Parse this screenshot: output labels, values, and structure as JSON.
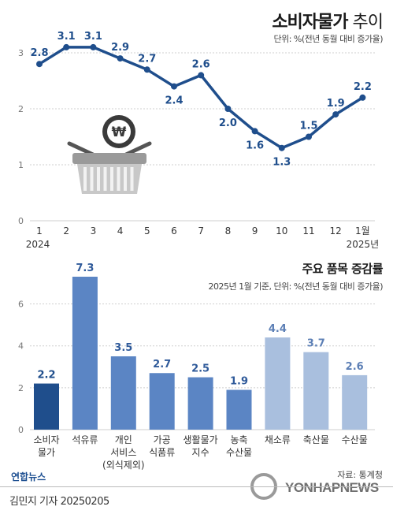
{
  "header": {
    "title_bold": "소비자물가",
    "title_light": " 추이",
    "unit": "단위: %(전년 동월 대비 증가율)"
  },
  "chart_data": [
    {
      "type": "line",
      "title": "소비자물가 추이",
      "ylabel": "",
      "unit": "단위: %(전년 동월 대비 증가율)",
      "ylim": [
        0,
        3
      ],
      "yticks": [
        "0",
        "1",
        "2",
        "3"
      ],
      "x": [
        "1",
        "2",
        "3",
        "4",
        "5",
        "6",
        "7",
        "8",
        "9",
        "10",
        "11",
        "12",
        "1월"
      ],
      "x_year_labels": {
        "start": "2024",
        "end": "2025년"
      },
      "series": [
        {
          "values": [
            2.8,
            3.1,
            3.1,
            2.9,
            2.7,
            2.4,
            2.6,
            2.0,
            1.6,
            1.3,
            1.5,
            1.9,
            2.2
          ],
          "labels": [
            "2.8",
            "3.1",
            "3.1",
            "2.9",
            "2.7",
            "2.4",
            "2.6",
            "2.0",
            "1.6",
            "1.3",
            "1.5",
            "1.9",
            "2.2"
          ]
        }
      ],
      "grid": true,
      "colors": {
        "line": "#1f4e8c",
        "grid": "#cfcfcf"
      }
    },
    {
      "type": "bar",
      "title": "주요 품목 증감률",
      "unit": "2025년 1월 기준, 단위: %(전년 동월 대비 증가율)",
      "ylim": [
        0,
        7.3
      ],
      "yticks": [
        "0",
        "2",
        "4",
        "6"
      ],
      "categories": [
        [
          "소비자",
          "물가"
        ],
        [
          "석유류"
        ],
        [
          "개인",
          "서비스",
          "(외식제외)"
        ],
        [
          "가공",
          "식품류"
        ],
        [
          "생활물가",
          "지수"
        ],
        [
          "농축",
          "수산물"
        ],
        [
          "채소류"
        ],
        [
          "축산물"
        ],
        [
          "수산물"
        ]
      ],
      "values": [
        2.2,
        7.3,
        3.5,
        2.7,
        2.5,
        1.9,
        4.4,
        3.7,
        2.6
      ],
      "labels": [
        "2.2",
        "7.3",
        "3.5",
        "2.7",
        "2.5",
        "1.9",
        "4.4",
        "3.7",
        "2.6"
      ],
      "bar_colors": [
        "#1f4e8c",
        "#5b85c4",
        "#5b85c4",
        "#5b85c4",
        "#5b85c4",
        "#5b85c4",
        "#a9bfde",
        "#a9bfde",
        "#a9bfde"
      ],
      "label_colors": [
        "#1f4e8c",
        "#2f5a9a",
        "#2f5a9a",
        "#2f5a9a",
        "#2f5a9a",
        "#2f5a9a",
        "#5c7fb5",
        "#5c7fb5",
        "#5c7fb5"
      ],
      "grid": true
    }
  ],
  "bar_header": {
    "title": "주요 품목 증감률",
    "unit": "2025년 1월 기준, 단위: %(전년 동월 대비 증가율)"
  },
  "footer": {
    "source": "자료: 통계청",
    "credit": "김민지 기자  20250205",
    "logo_left": "연합뉴스",
    "logo_right": "YONHAPNEWS"
  },
  "icons": [
    "won-coin-icon",
    "shopping-basket-icon"
  ]
}
